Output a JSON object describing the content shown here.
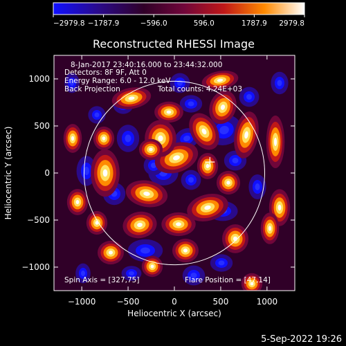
{
  "chart_data": {
    "type": "heatmap",
    "title": "Reconstructed RHESSI Image",
    "xlabel": "Heliocentric X (arcsec)",
    "ylabel": "Heliocentric Y (arcsec)",
    "xlim": [
      -1300,
      1300
    ],
    "ylim": [
      -1250,
      1250
    ],
    "xticks": [
      -1000,
      -500,
      0,
      500,
      1000
    ],
    "yticks": [
      1000,
      500,
      0,
      -500,
      -1000
    ],
    "xtick_labels": [
      "−1000",
      "−500",
      "0",
      "500",
      "1000"
    ],
    "ytick_labels": [
      "1000",
      "500",
      "0",
      "−500",
      "−1000"
    ],
    "colorbar": {
      "min": -2979.8,
      "max": 2979.8,
      "ticks": [
        -2979.8,
        -1787.9,
        -596.0,
        596.0,
        1787.9,
        2979.8
      ],
      "tick_labels": [
        "−2979.8",
        "−1787.9",
        "−596.0",
        "596.0",
        "1787.9",
        "2979.8"
      ],
      "colors": [
        "#1010ff",
        "#2a0a8a",
        "#300028",
        "#70063a",
        "#c01818",
        "#ff8a00",
        "#ffffff"
      ]
    },
    "solar_limb_radius": 975,
    "flare_position": [
      47,
      14
    ],
    "annotations": [
      "8-Jan-2017 23:40:16.000 to 23:44:32.000",
      "Detectors: 8F 9F, Att 0",
      "Energy Range: 6.0 - 12.0 keV",
      "Back Projection",
      "Total counts: 4.24E+03",
      "Spin Axis = [327,75]",
      "Flare Position = [47,14]"
    ],
    "grid": false
  },
  "footer": {
    "timestamp": "5-Sep-2022 19:26"
  }
}
